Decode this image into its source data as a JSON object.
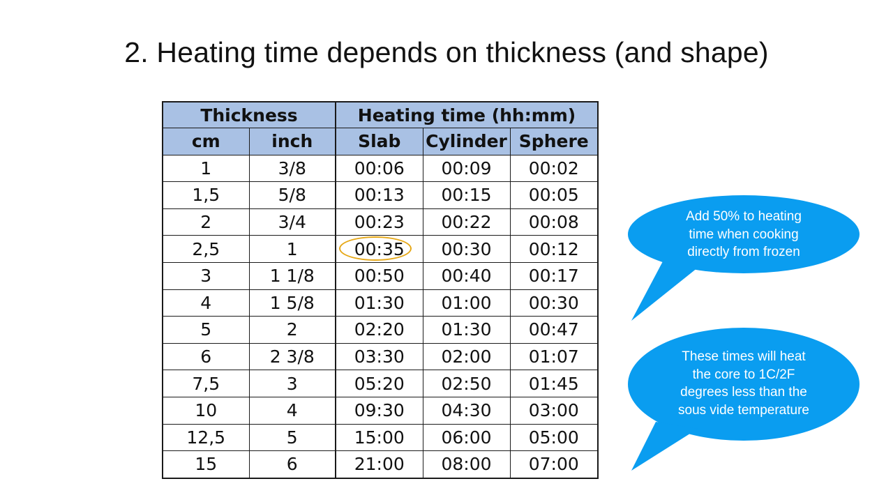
{
  "slide": {
    "title": "2. Heating time depends on thickness (and shape)"
  },
  "table": {
    "group_headers": {
      "thickness": "Thickness",
      "heating_time": "Heating time (hh:mm)"
    },
    "columns": [
      "cm",
      "inch",
      "Slab",
      "Cylinder",
      "Sphere"
    ],
    "rows": [
      [
        "1",
        "3/8",
        "00:06",
        "00:09",
        "00:02"
      ],
      [
        "1,5",
        "5/8",
        "00:13",
        "00:15",
        "00:05"
      ],
      [
        "2",
        "3/4",
        "00:23",
        "00:22",
        "00:08"
      ],
      [
        "2,5",
        "1",
        "00:35",
        "00:30",
        "00:12"
      ],
      [
        "3",
        "1 1/8",
        "00:50",
        "00:40",
        "00:17"
      ],
      [
        "4",
        "1 5/8",
        "01:30",
        "01:00",
        "00:30"
      ],
      [
        "5",
        "2",
        "02:20",
        "01:30",
        "00:47"
      ],
      [
        "6",
        "2 3/8",
        "03:30",
        "02:00",
        "01:07"
      ],
      [
        "7,5",
        "3",
        "05:20",
        "02:50",
        "01:45"
      ],
      [
        "10",
        "4",
        "09:30",
        "04:30",
        "03:00"
      ],
      [
        "12,5",
        "5",
        "15:00",
        "06:00",
        "05:00"
      ],
      [
        "15",
        "6",
        "21:00",
        "08:00",
        "07:00"
      ]
    ],
    "highlighted_cell": "00:35"
  },
  "callouts": {
    "frozen": {
      "lines": [
        "Add 50% to heating",
        "time when cooking",
        "directly from frozen"
      ]
    },
    "core": {
      "lines": [
        "These times will heat",
        "the core to 1C/2F",
        "degrees less than the",
        "sous vide temperature"
      ]
    }
  },
  "colors": {
    "header_fill": "#a9c1e4",
    "callout_fill": "#0a9df0",
    "highlight_ring": "#e6a817"
  }
}
